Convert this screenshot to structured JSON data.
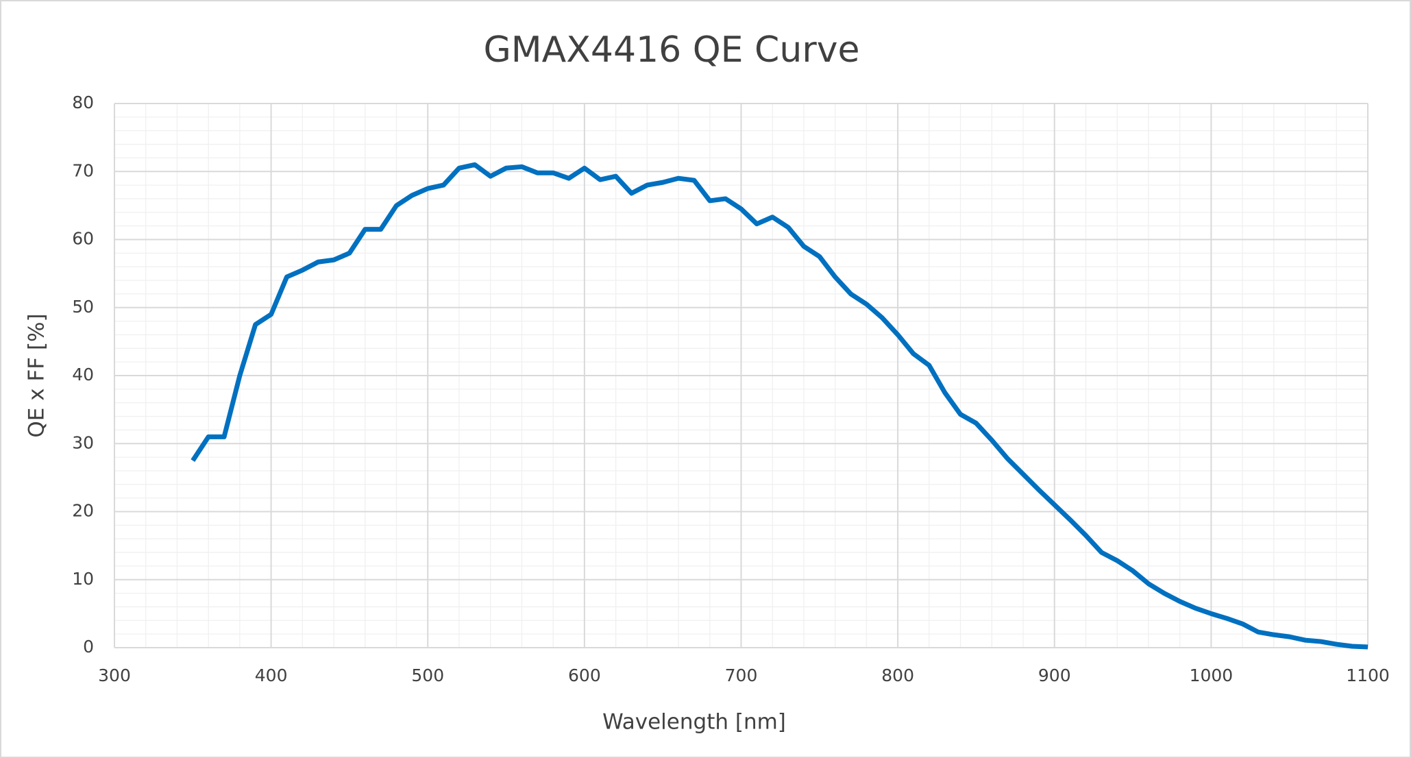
{
  "chart_data": {
    "type": "line",
    "title": "GMAX4416 QE Curve",
    "x_label": "Wavelength [nm]",
    "y_label": "QE x FF [%]",
    "x": [
      350,
      360,
      370,
      380,
      390,
      400,
      410,
      420,
      430,
      440,
      450,
      460,
      470,
      480,
      490,
      500,
      510,
      520,
      530,
      540,
      550,
      560,
      570,
      580,
      590,
      600,
      610,
      620,
      630,
      640,
      650,
      660,
      670,
      680,
      690,
      700,
      710,
      720,
      730,
      740,
      750,
      760,
      770,
      780,
      790,
      800,
      810,
      820,
      830,
      840,
      850,
      860,
      870,
      880,
      890,
      900,
      910,
      920,
      930,
      940,
      950,
      960,
      970,
      980,
      990,
      1000,
      1010,
      1020,
      1030,
      1040,
      1050,
      1060,
      1070,
      1080,
      1090,
      1100
    ],
    "series": [
      {
        "name": "QE x FF",
        "color": "#0070c0",
        "values": [
          27.5,
          31,
          31,
          40,
          47.5,
          49,
          54.5,
          55.5,
          56.7,
          57,
          58,
          61.5,
          61.5,
          65,
          66.5,
          67.5,
          68,
          70.5,
          71,
          69.3,
          70.5,
          70.7,
          69.8,
          69.8,
          69,
          70.5,
          68.8,
          69.3,
          66.8,
          68,
          68.4,
          69,
          68.7,
          65.7,
          66,
          64.5,
          62.3,
          63.3,
          61.8,
          59,
          57.5,
          54.5,
          52,
          50.5,
          48.5,
          46,
          43.2,
          41.5,
          37.5,
          34.3,
          33,
          30.5,
          27.8,
          25.5,
          23.2,
          21,
          18.8,
          16.5,
          14,
          12.8,
          11.3,
          9.4,
          8,
          6.8,
          5.8,
          5,
          4.3,
          3.5,
          2.3,
          1.9,
          1.6,
          1.1,
          0.9,
          0.5,
          0.2,
          0.1
        ]
      }
    ],
    "xlim": [
      300,
      1100
    ],
    "xticks": [
      300,
      400,
      500,
      600,
      700,
      800,
      900,
      1000,
      1100
    ],
    "ylim": [
      0,
      80
    ],
    "yticks": [
      0,
      10,
      20,
      30,
      40,
      50,
      60,
      70,
      80
    ],
    "grid": true,
    "minor_grid": true
  }
}
